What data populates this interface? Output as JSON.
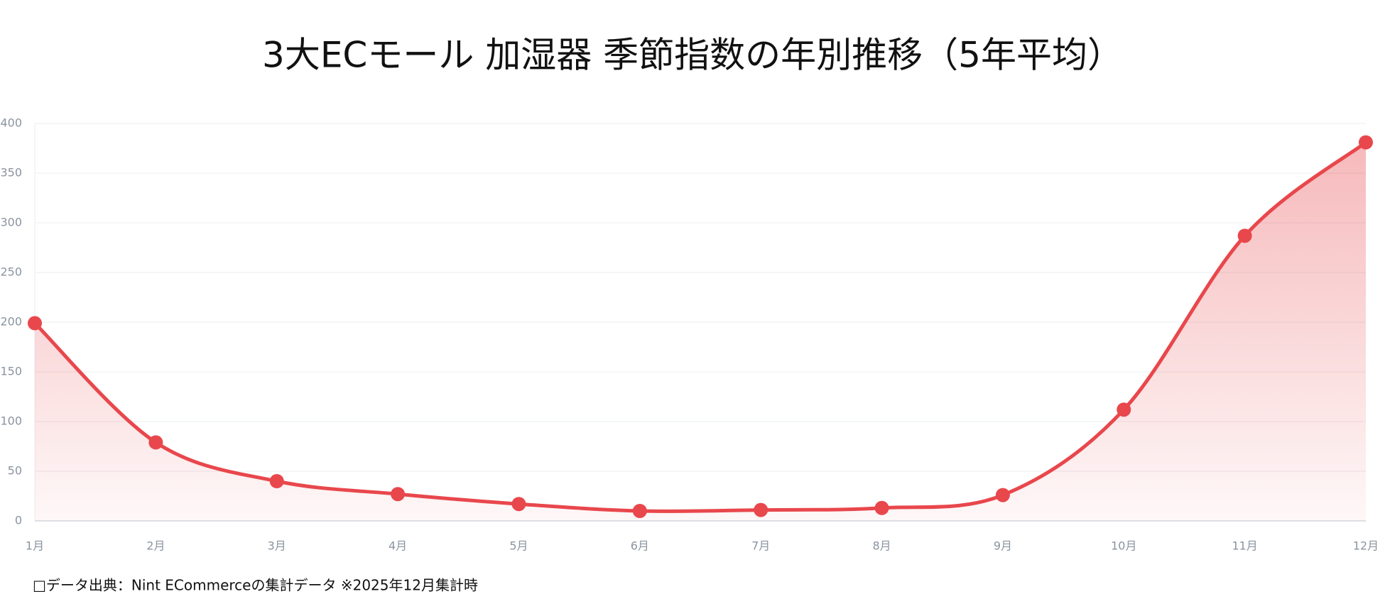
{
  "chart_data": {
    "type": "line",
    "title": "3大ECモール 加湿器 季節指数の年別推移（5年平均）",
    "footnote": "□データ出典：Nint ECommerceの集計データ ※2025年12月集計時",
    "categories": [
      "1月",
      "2月",
      "3月",
      "4月",
      "5月",
      "6月",
      "7月",
      "8月",
      "9月",
      "10月",
      "11月",
      "12月"
    ],
    "values": [
      199,
      79,
      40,
      27,
      17,
      10,
      11,
      13,
      26,
      112,
      287,
      381
    ],
    "color": "#e8474c",
    "ylim": [
      0,
      400
    ],
    "yticks": [
      0,
      50,
      100,
      150,
      200,
      250,
      300,
      350,
      400
    ],
    "grid": true
  }
}
